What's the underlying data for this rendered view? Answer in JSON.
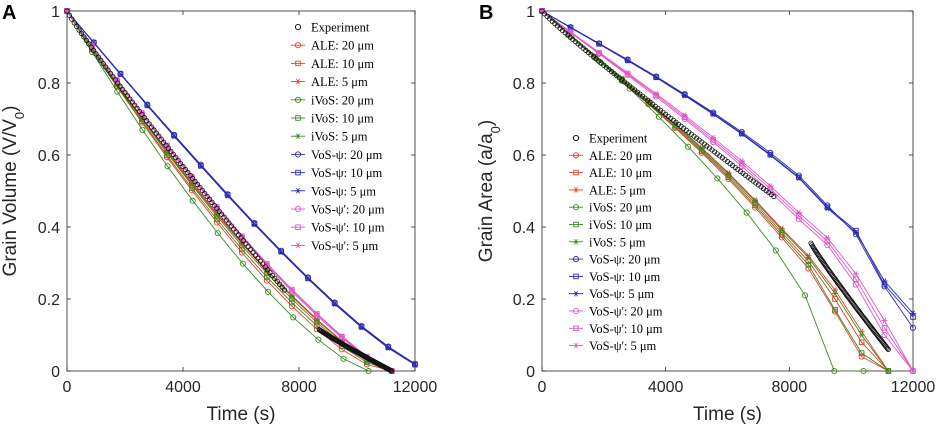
{
  "chart_data": [
    {
      "type": "line",
      "panel": "A",
      "xlabel": "Time (s)",
      "ylabel": "Grain Volume (V/V",
      "ylabel_sub": "0",
      "ylabel_end": ")",
      "xlim": [
        0,
        12000
      ],
      "ylim": [
        0,
        1
      ],
      "xticks": [
        0,
        4000,
        8000,
        12000
      ],
      "yticks": [
        0,
        0.2,
        0.4,
        0.6,
        0.8,
        1
      ],
      "legend_location": "top-right",
      "colors": {
        "experiment": "#000000",
        "ale": "#e8402a",
        "ivos": "#3a8a1e",
        "vos_psi": "#2b2bb0",
        "vos_psi_prime": "#e055c8"
      },
      "experiment": {
        "name": "Experiment",
        "segments": [
          {
            "t0": 0,
            "t1": 7500,
            "v0": 1.0,
            "v1": 0.225
          },
          {
            "t0": 8700,
            "t1": 11200,
            "v0": 0.115,
            "v1": 0.0
          }
        ]
      },
      "series": [
        {
          "name": "ALE: 20 μm",
          "group": "ale",
          "marker": "o",
          "t_end": 11200,
          "values": [
            1.0,
            0.893,
            0.79,
            0.69,
            0.594,
            0.502,
            0.413,
            0.329,
            0.251,
            0.18,
            0.116,
            0.06,
            0.018,
            0.0
          ]
        },
        {
          "name": "ALE: 10 μm",
          "group": "ale",
          "marker": "s",
          "t_end": 11200,
          "values": [
            1.0,
            0.896,
            0.796,
            0.699,
            0.606,
            0.516,
            0.43,
            0.348,
            0.271,
            0.2,
            0.135,
            0.076,
            0.028,
            0.0
          ]
        },
        {
          "name": "ALE: 5 μm",
          "group": "ale",
          "marker": "*",
          "t_end": 11200,
          "values": [
            1.0,
            0.898,
            0.8,
            0.704,
            0.612,
            0.523,
            0.438,
            0.357,
            0.281,
            0.21,
            0.144,
            0.084,
            0.032,
            0.0
          ]
        },
        {
          "name": "iVoS: 20 μm",
          "group": "ivos",
          "marker": "o",
          "t_end": 10400,
          "values": [
            1.0,
            0.886,
            0.776,
            0.67,
            0.569,
            0.473,
            0.383,
            0.298,
            0.22,
            0.149,
            0.087,
            0.034,
            0.0
          ]
        },
        {
          "name": "iVoS: 10 μm",
          "group": "ivos",
          "marker": "s",
          "t_end": 11200,
          "values": [
            1.0,
            0.894,
            0.792,
            0.694,
            0.599,
            0.508,
            0.421,
            0.338,
            0.261,
            0.19,
            0.126,
            0.069,
            0.024,
            0.0
          ]
        },
        {
          "name": "iVoS: 5 μm",
          "group": "ivos",
          "marker": "*",
          "t_end": 11200,
          "values": [
            1.0,
            0.897,
            0.798,
            0.702,
            0.609,
            0.52,
            0.435,
            0.354,
            0.278,
            0.207,
            0.141,
            0.081,
            0.03,
            0.0
          ]
        },
        {
          "name": "VoS-ψ: 20 μm",
          "group": "vos_psi",
          "marker": "o",
          "t_end": 12000,
          "values": [
            1.0,
            0.913,
            0.826,
            0.74,
            0.656,
            0.573,
            0.491,
            0.411,
            0.334,
            0.26,
            0.19,
            0.125,
            0.068,
            0.02
          ]
        },
        {
          "name": "VoS-ψ: 10 μm",
          "group": "vos_psi",
          "marker": "s",
          "t_end": 12000,
          "values": [
            1.0,
            0.912,
            0.825,
            0.738,
            0.654,
            0.57,
            0.489,
            0.409,
            0.332,
            0.258,
            0.188,
            0.123,
            0.066,
            0.018
          ]
        },
        {
          "name": "VoS-ψ: 5 μm",
          "group": "vos_psi",
          "marker": "*",
          "t_end": 12000,
          "values": [
            1.0,
            0.911,
            0.824,
            0.737,
            0.652,
            0.569,
            0.487,
            0.407,
            0.33,
            0.256,
            0.186,
            0.121,
            0.064,
            0.017
          ]
        },
        {
          "name": "VoS-ψ': 20 μm",
          "group": "vos_psi_prime",
          "marker": "o",
          "t_end": 11200,
          "values": [
            1.0,
            0.902,
            0.806,
            0.713,
            0.623,
            0.536,
            0.451,
            0.37,
            0.293,
            0.221,
            0.154,
            0.092,
            0.037,
            0.0
          ]
        },
        {
          "name": "VoS-ψ': 10 μm",
          "group": "vos_psi_prime",
          "marker": "s",
          "t_end": 11200,
          "values": [
            1.0,
            0.903,
            0.808,
            0.716,
            0.626,
            0.539,
            0.455,
            0.374,
            0.297,
            0.225,
            0.158,
            0.095,
            0.039,
            0.0
          ]
        },
        {
          "name": "VoS-ψ': 5 μm",
          "group": "vos_psi_prime",
          "marker": "*",
          "t_end": 11200,
          "values": [
            1.0,
            0.904,
            0.809,
            0.717,
            0.628,
            0.541,
            0.457,
            0.376,
            0.299,
            0.227,
            0.16,
            0.097,
            0.041,
            0.0
          ]
        }
      ]
    },
    {
      "type": "line",
      "panel": "B",
      "xlabel": "Time (s)",
      "ylabel": "Grain Area (a/a",
      "ylabel_sub": "0",
      "ylabel_end": ")",
      "xlim": [
        0,
        12000
      ],
      "ylim": [
        0,
        1
      ],
      "xticks": [
        0,
        4000,
        8000,
        12000
      ],
      "yticks": [
        0,
        0.2,
        0.4,
        0.6,
        0.8,
        1
      ],
      "legend_location": "bottom-right",
      "colors": {
        "experiment": "#000000",
        "ale": "#e8402a",
        "ivos": "#3a8a1e",
        "vos_psi": "#2b2bb0",
        "vos_psi_prime": "#e055c8"
      },
      "experiment": {
        "name": "Experiment",
        "segments": [
          {
            "t0": 0,
            "t1": 7500,
            "v0": 1.0,
            "v1": 0.485
          },
          {
            "t0": 8700,
            "t1": 11200,
            "v0": 0.355,
            "v1": 0.06
          }
        ]
      },
      "series": [
        {
          "name": "ALE: 20 μm",
          "group": "ale",
          "marker": "o",
          "t_end": 11200,
          "values": [
            1.0,
            0.934,
            0.87,
            0.806,
            0.741,
            0.675,
            0.606,
            0.533,
            0.454,
            0.371,
            0.285,
            0.165,
            0.04,
            0.0
          ]
        },
        {
          "name": "ALE: 10 μm",
          "group": "ale",
          "marker": "s",
          "t_end": 11200,
          "values": [
            1.0,
            0.936,
            0.873,
            0.81,
            0.746,
            0.682,
            0.614,
            0.543,
            0.466,
            0.385,
            0.305,
            0.2,
            0.08,
            0.0
          ]
        },
        {
          "name": "ALE: 5 μm",
          "group": "ale",
          "marker": "*",
          "t_end": 11200,
          "values": [
            1.0,
            0.937,
            0.875,
            0.813,
            0.75,
            0.686,
            0.62,
            0.55,
            0.475,
            0.396,
            0.32,
            0.225,
            0.11,
            0.0
          ]
        },
        {
          "name": "iVoS: 20 μm",
          "group": "ivos",
          "marker": "o",
          "t_end": 10400,
          "values": [
            1.0,
            0.93,
            0.858,
            0.784,
            0.706,
            0.623,
            0.535,
            0.44,
            0.335,
            0.21,
            0.0,
            0.0
          ]
        },
        {
          "name": "iVoS: 10 μm",
          "group": "ivos",
          "marker": "s",
          "t_end": 11200,
          "values": [
            1.0,
            0.935,
            0.871,
            0.808,
            0.743,
            0.678,
            0.61,
            0.538,
            0.46,
            0.378,
            0.295,
            0.17,
            0.05,
            0.0
          ]
        },
        {
          "name": "iVoS: 5 μm",
          "group": "ivos",
          "marker": "*",
          "t_end": 11200,
          "values": [
            1.0,
            0.937,
            0.874,
            0.812,
            0.749,
            0.685,
            0.618,
            0.548,
            0.472,
            0.392,
            0.315,
            0.215,
            0.1,
            0.0
          ]
        },
        {
          "name": "VoS-ψ: 20 μm",
          "group": "vos_psi",
          "marker": "o",
          "t_end": 12000,
          "values": [
            1.0,
            0.955,
            0.91,
            0.865,
            0.818,
            0.769,
            0.718,
            0.664,
            0.606,
            0.543,
            0.46,
            0.38,
            0.235,
            0.12
          ]
        },
        {
          "name": "VoS-ψ: 10 μm",
          "group": "vos_psi",
          "marker": "s",
          "t_end": 12000,
          "values": [
            1.0,
            0.954,
            0.909,
            0.863,
            0.816,
            0.767,
            0.715,
            0.66,
            0.601,
            0.538,
            0.455,
            0.39,
            0.24,
            0.15
          ]
        },
        {
          "name": "VoS-ψ: 5 μm",
          "group": "vos_psi",
          "marker": "*",
          "t_end": 12000,
          "values": [
            1.0,
            0.954,
            0.908,
            0.862,
            0.815,
            0.765,
            0.713,
            0.658,
            0.599,
            0.536,
            0.452,
            0.385,
            0.25,
            0.16
          ]
        },
        {
          "name": "VoS-ψ': 20 μm",
          "group": "vos_psi_prime",
          "marker": "o",
          "t_end": 12000,
          "values": [
            1.0,
            0.94,
            0.881,
            0.822,
            0.762,
            0.7,
            0.636,
            0.569,
            0.498,
            0.422,
            0.35,
            0.24,
            0.1,
            0.0
          ]
        },
        {
          "name": "VoS-ψ': 10 μm",
          "group": "vos_psi_prime",
          "marker": "s",
          "t_end": 12000,
          "values": [
            1.0,
            0.941,
            0.883,
            0.825,
            0.766,
            0.705,
            0.642,
            0.576,
            0.506,
            0.431,
            0.36,
            0.255,
            0.12,
            0.0
          ]
        },
        {
          "name": "VoS-ψ': 5 μm",
          "group": "vos_psi_prime",
          "marker": "*",
          "t_end": 12000,
          "values": [
            1.0,
            0.942,
            0.885,
            0.828,
            0.77,
            0.71,
            0.648,
            0.583,
            0.514,
            0.44,
            0.37,
            0.27,
            0.14,
            0.0
          ]
        }
      ]
    }
  ]
}
